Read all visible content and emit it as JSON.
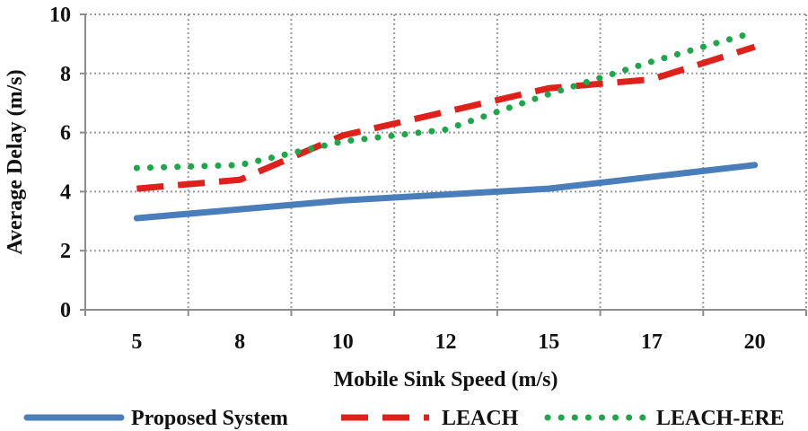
{
  "chart_data": {
    "type": "line",
    "title": "",
    "xlabel": "Mobile Sink Speed (m/s)",
    "ylabel": "Average Delay (m/s)",
    "categories": [
      "5",
      "8",
      "10",
      "12",
      "15",
      "17",
      "20"
    ],
    "ylim": [
      0,
      10
    ],
    "yticks": [
      0,
      2,
      4,
      6,
      8,
      10
    ],
    "grid": true,
    "legend_position": "bottom",
    "series": [
      {
        "name": "Proposed System",
        "style": "solid",
        "color": "#4a7ebb",
        "values": [
          3.1,
          3.4,
          3.7,
          3.9,
          4.1,
          4.5,
          4.9
        ]
      },
      {
        "name": "LEACH",
        "style": "dashed",
        "color": "#e0201b",
        "values": [
          4.1,
          4.4,
          5.9,
          6.7,
          7.5,
          7.8,
          8.9
        ]
      },
      {
        "name": "LEACH-ERE",
        "style": "dotted",
        "color": "#1ea64b",
        "values": [
          4.8,
          4.9,
          5.7,
          6.1,
          7.3,
          8.4,
          9.4
        ]
      }
    ]
  }
}
